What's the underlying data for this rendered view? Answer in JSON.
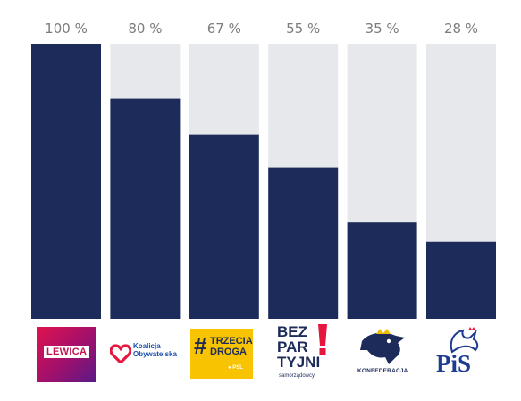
{
  "chart_data": {
    "type": "bar",
    "categories": [
      "Lewica",
      "Koalicja Obywatelska",
      "Trzecia Droga",
      "Bezpartyjni Samorządowcy",
      "Konfederacja",
      "PiS"
    ],
    "values": [
      100,
      80,
      67,
      55,
      35,
      28
    ],
    "value_labels": [
      "100 %",
      "80 %",
      "67 %",
      "55 %",
      "35 %",
      "28 %"
    ],
    "ylim": [
      0,
      100
    ],
    "grid": false,
    "bar_color": "#1d2b5a",
    "track_color": "#e6e8eb"
  },
  "logos": {
    "lewica": "LEWICA",
    "ko_line1": "Koalicja",
    "ko_line2": "Obywatelska",
    "td_hash": "#",
    "td_line1": "TRZECIA",
    "td_line2": "DROGA",
    "td_psl": "● PSL",
    "bp_line1": "BEZ",
    "bp_line2": "PAR",
    "bp_line3": "TYJNI",
    "bp_sub": "samorządowcy",
    "kf": "KONFEDERACJA",
    "pis": "PiS"
  },
  "icons": {
    "ko": "heart-icon",
    "bp": "exclamation-icon",
    "kf": "eagle-icon",
    "pis": "eagle-icon"
  }
}
